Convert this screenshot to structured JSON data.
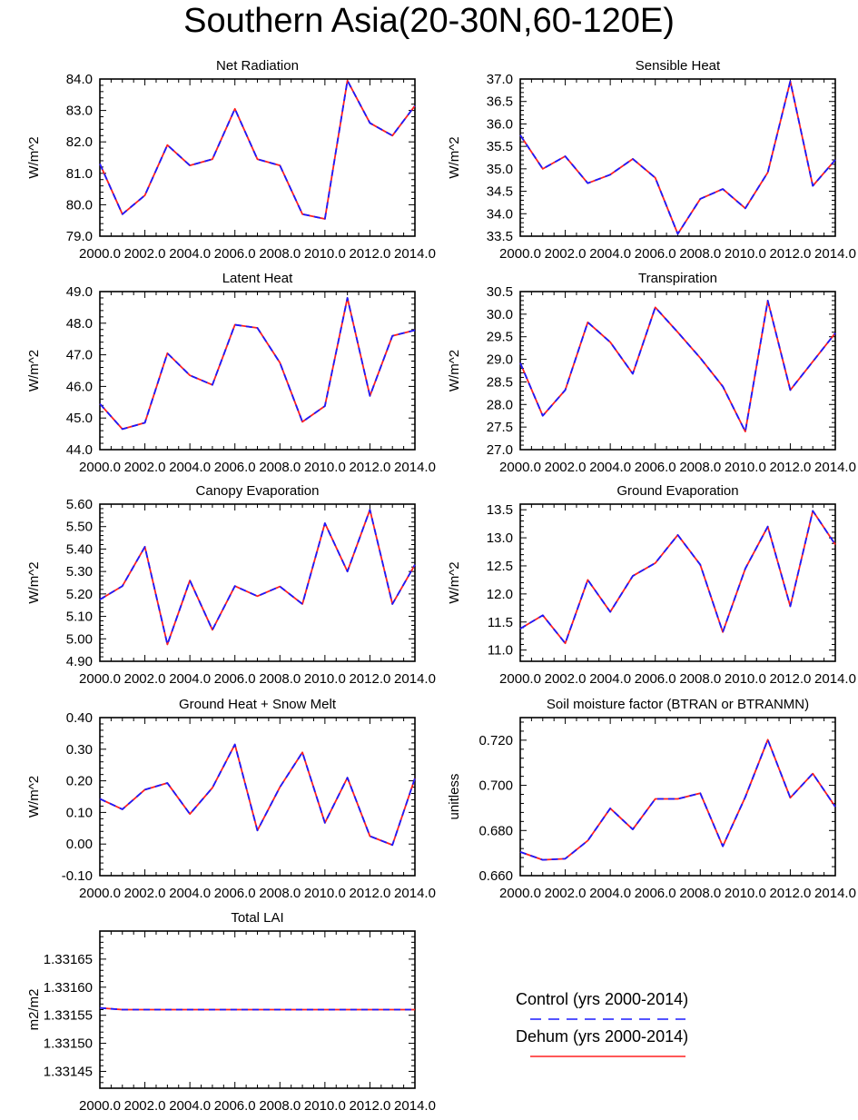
{
  "figure": {
    "title": "Southern Asia(20-30N,60-120E)"
  },
  "colors": {
    "control": "#1a1aff",
    "dehum": "#ff2020",
    "axis": "#000000",
    "background": "#ffffff"
  },
  "legend": {
    "control_label": "Control (yrs 2000-2014)",
    "dehum_label": "Dehum (yrs 2000-2014)"
  },
  "chart_data": [
    {
      "type": "line",
      "title": "Net Radiation",
      "ylabel": "W/m^2",
      "xlabel": "",
      "xlim": [
        2000,
        2014
      ],
      "ylim": [
        79.0,
        84.0
      ],
      "ytick_decimals": 1,
      "xticks": [
        2000,
        2002,
        2004,
        2006,
        2008,
        2010,
        2012,
        2014
      ],
      "xtick_labels": [
        "2000.0",
        "2002.0",
        "2004.0",
        "2006.0",
        "2008.0",
        "2010.0",
        "2012.0",
        "2014.0"
      ],
      "yticks": [
        79.0,
        80.0,
        81.0,
        82.0,
        83.0,
        84.0
      ],
      "yminor": 5,
      "x": [
        2000,
        2001,
        2002,
        2003,
        2004,
        2005,
        2006,
        2007,
        2008,
        2009,
        2010,
        2011,
        2012,
        2013,
        2014
      ],
      "series": [
        {
          "name": "Control (yrs 2000-2014)",
          "style": "dashed",
          "values": [
            81.3,
            79.7,
            80.3,
            81.9,
            81.25,
            81.45,
            83.05,
            81.45,
            81.25,
            79.7,
            79.55,
            83.95,
            82.6,
            82.2,
            83.15
          ]
        },
        {
          "name": "Dehum (yrs 2000-2014)",
          "style": "solid",
          "values": [
            81.3,
            79.7,
            80.3,
            81.9,
            81.25,
            81.45,
            83.05,
            81.45,
            81.25,
            79.7,
            79.55,
            83.95,
            82.6,
            82.2,
            83.15
          ]
        }
      ]
    },
    {
      "type": "line",
      "title": "Sensible Heat",
      "ylabel": "W/m^2",
      "xlabel": "",
      "xlim": [
        2000,
        2014
      ],
      "ylim": [
        33.5,
        37.0
      ],
      "ytick_decimals": 1,
      "xticks": [
        2000,
        2002,
        2004,
        2006,
        2008,
        2010,
        2012,
        2014
      ],
      "xtick_labels": [
        "2000.0",
        "2002.0",
        "2004.0",
        "2006.0",
        "2008.0",
        "2010.0",
        "2012.0",
        "2014.0"
      ],
      "yticks": [
        33.5,
        34.0,
        34.5,
        35.0,
        35.5,
        36.0,
        36.5,
        37.0
      ],
      "yminor": 5,
      "x": [
        2000,
        2001,
        2002,
        2003,
        2004,
        2005,
        2006,
        2007,
        2008,
        2009,
        2010,
        2011,
        2012,
        2013,
        2014
      ],
      "series": [
        {
          "name": "Control (yrs 2000-2014)",
          "style": "dashed",
          "values": [
            35.75,
            35.0,
            35.28,
            34.68,
            34.87,
            35.22,
            34.8,
            33.55,
            34.33,
            34.55,
            34.12,
            34.92,
            36.95,
            34.62,
            35.2
          ]
        },
        {
          "name": "Dehum (yrs 2000-2014)",
          "style": "solid",
          "values": [
            35.75,
            35.0,
            35.28,
            34.68,
            34.87,
            35.22,
            34.8,
            33.55,
            34.33,
            34.55,
            34.12,
            34.92,
            36.95,
            34.62,
            35.2
          ]
        }
      ]
    },
    {
      "type": "line",
      "title": "Latent Heat",
      "ylabel": "W/m^2",
      "xlabel": "",
      "xlim": [
        2000,
        2014
      ],
      "ylim": [
        44.0,
        49.0
      ],
      "ytick_decimals": 1,
      "xticks": [
        2000,
        2002,
        2004,
        2006,
        2008,
        2010,
        2012,
        2014
      ],
      "xtick_labels": [
        "2000.0",
        "2002.0",
        "2004.0",
        "2006.0",
        "2008.0",
        "2010.0",
        "2012.0",
        "2014.0"
      ],
      "yticks": [
        44.0,
        45.0,
        46.0,
        47.0,
        48.0,
        49.0
      ],
      "yminor": 5,
      "x": [
        2000,
        2001,
        2002,
        2003,
        2004,
        2005,
        2006,
        2007,
        2008,
        2009,
        2010,
        2011,
        2012,
        2013,
        2014
      ],
      "series": [
        {
          "name": "Control (yrs 2000-2014)",
          "style": "dashed",
          "values": [
            45.45,
            44.65,
            44.85,
            47.05,
            46.35,
            46.05,
            47.95,
            47.85,
            46.75,
            44.88,
            45.38,
            48.8,
            45.7,
            47.6,
            47.78
          ]
        },
        {
          "name": "Dehum (yrs 2000-2014)",
          "style": "solid",
          "values": [
            45.45,
            44.65,
            44.85,
            47.05,
            46.35,
            46.05,
            47.95,
            47.85,
            46.75,
            44.88,
            45.38,
            48.8,
            45.7,
            47.6,
            47.78
          ]
        }
      ]
    },
    {
      "type": "line",
      "title": "Transpiration",
      "ylabel": "W/m^2",
      "xlabel": "",
      "xlim": [
        2000,
        2014
      ],
      "ylim": [
        27.0,
        30.5
      ],
      "ytick_decimals": 1,
      "xticks": [
        2000,
        2002,
        2004,
        2006,
        2008,
        2010,
        2012,
        2014
      ],
      "xtick_labels": [
        "2000.0",
        "2002.0",
        "2004.0",
        "2006.0",
        "2008.0",
        "2010.0",
        "2012.0",
        "2014.0"
      ],
      "yticks": [
        27.0,
        27.5,
        28.0,
        28.5,
        29.0,
        29.5,
        30.0,
        30.5
      ],
      "yminor": 5,
      "x": [
        2000,
        2001,
        2002,
        2003,
        2004,
        2005,
        2006,
        2007,
        2008,
        2009,
        2010,
        2011,
        2012,
        2013,
        2014
      ],
      "series": [
        {
          "name": "Control (yrs 2000-2014)",
          "style": "dashed",
          "values": [
            28.92,
            27.75,
            28.32,
            29.82,
            29.38,
            28.68,
            30.15,
            29.6,
            29.03,
            28.4,
            27.4,
            30.3,
            28.32,
            28.95,
            29.58
          ]
        },
        {
          "name": "Dehum (yrs 2000-2014)",
          "style": "solid",
          "values": [
            28.92,
            27.75,
            28.32,
            29.82,
            29.38,
            28.68,
            30.15,
            29.6,
            29.03,
            28.4,
            27.4,
            30.3,
            28.32,
            28.95,
            29.58
          ]
        }
      ]
    },
    {
      "type": "line",
      "title": "Canopy Evaporation",
      "ylabel": "W/m^2",
      "xlabel": "",
      "xlim": [
        2000,
        2014
      ],
      "ylim": [
        4.9,
        5.6
      ],
      "ytick_decimals": 2,
      "xticks": [
        2000,
        2002,
        2004,
        2006,
        2008,
        2010,
        2012,
        2014
      ],
      "xtick_labels": [
        "2000.0",
        "2002.0",
        "2004.0",
        "2006.0",
        "2008.0",
        "2010.0",
        "2012.0",
        "2014.0"
      ],
      "yticks": [
        4.9,
        5.0,
        5.1,
        5.2,
        5.3,
        5.4,
        5.5,
        5.6
      ],
      "yminor": 5,
      "x": [
        2000,
        2001,
        2002,
        2003,
        2004,
        2005,
        2006,
        2007,
        2008,
        2009,
        2010,
        2011,
        2012,
        2013,
        2014
      ],
      "series": [
        {
          "name": "Control (yrs 2000-2014)",
          "style": "dashed",
          "values": [
            5.175,
            5.235,
            5.41,
            4.975,
            5.26,
            5.04,
            5.235,
            5.19,
            5.233,
            5.155,
            5.515,
            5.3,
            5.575,
            5.155,
            5.33
          ]
        },
        {
          "name": "Dehum (yrs 2000-2014)",
          "style": "solid",
          "values": [
            5.175,
            5.235,
            5.41,
            4.975,
            5.26,
            5.04,
            5.235,
            5.19,
            5.233,
            5.155,
            5.515,
            5.3,
            5.575,
            5.155,
            5.33
          ]
        }
      ]
    },
    {
      "type": "line",
      "title": "Ground Evaporation",
      "ylabel": "W/m^2",
      "xlabel": "",
      "xlim": [
        2000,
        2014
      ],
      "ylim": [
        10.8,
        13.6
      ],
      "ytick_decimals": 1,
      "xticks": [
        2000,
        2002,
        2004,
        2006,
        2008,
        2010,
        2012,
        2014
      ],
      "xtick_labels": [
        "2000.0",
        "2002.0",
        "2004.0",
        "2006.0",
        "2008.0",
        "2010.0",
        "2012.0",
        "2014.0"
      ],
      "yticks": [
        11.0,
        11.5,
        12.0,
        12.5,
        13.0,
        13.5
      ],
      "yminor": 5,
      "x": [
        2000,
        2001,
        2002,
        2003,
        2004,
        2005,
        2006,
        2007,
        2008,
        2009,
        2010,
        2011,
        2012,
        2013,
        2014
      ],
      "series": [
        {
          "name": "Control (yrs 2000-2014)",
          "style": "dashed",
          "values": [
            11.38,
            11.62,
            11.12,
            12.25,
            11.68,
            12.32,
            12.55,
            13.05,
            12.52,
            11.32,
            12.45,
            13.2,
            11.78,
            13.48,
            12.88
          ]
        },
        {
          "name": "Dehum (yrs 2000-2014)",
          "style": "solid",
          "values": [
            11.38,
            11.62,
            11.12,
            12.25,
            11.68,
            12.32,
            12.55,
            13.05,
            12.52,
            11.32,
            12.45,
            13.2,
            11.78,
            13.48,
            12.88
          ]
        }
      ]
    },
    {
      "type": "line",
      "title": "Ground Heat + Snow Melt",
      "ylabel": "W/m^2",
      "xlabel": "",
      "xlim": [
        2000,
        2014
      ],
      "ylim": [
        -0.1,
        0.4
      ],
      "ytick_decimals": 2,
      "xticks": [
        2000,
        2002,
        2004,
        2006,
        2008,
        2010,
        2012,
        2014
      ],
      "xtick_labels": [
        "2000.0",
        "2002.0",
        "2004.0",
        "2006.0",
        "2008.0",
        "2010.0",
        "2012.0",
        "2014.0"
      ],
      "yticks": [
        -0.1,
        0.0,
        0.1,
        0.2,
        0.3,
        0.4
      ],
      "yminor": 5,
      "x": [
        2000,
        2001,
        2002,
        2003,
        2004,
        2005,
        2006,
        2007,
        2008,
        2009,
        2010,
        2011,
        2012,
        2013,
        2014
      ],
      "series": [
        {
          "name": "Control (yrs 2000-2014)",
          "style": "dashed",
          "values": [
            0.143,
            0.11,
            0.172,
            0.193,
            0.095,
            0.178,
            0.315,
            0.043,
            0.18,
            0.29,
            0.067,
            0.21,
            0.025,
            -0.003,
            0.208
          ]
        },
        {
          "name": "Dehum (yrs 2000-2014)",
          "style": "solid",
          "values": [
            0.143,
            0.11,
            0.172,
            0.193,
            0.095,
            0.178,
            0.315,
            0.043,
            0.18,
            0.29,
            0.067,
            0.21,
            0.025,
            -0.003,
            0.208
          ]
        }
      ]
    },
    {
      "type": "line",
      "title": "Soil moisture factor (BTRAN or BTRANMN)",
      "ylabel": "unitless",
      "xlabel": "",
      "xlim": [
        2000,
        2014
      ],
      "ylim": [
        0.66,
        0.73
      ],
      "ytick_decimals": 3,
      "xticks": [
        2000,
        2002,
        2004,
        2006,
        2008,
        2010,
        2012,
        2014
      ],
      "xtick_labels": [
        "2000.0",
        "2002.0",
        "2004.0",
        "2006.0",
        "2008.0",
        "2010.0",
        "2012.0",
        "2014.0"
      ],
      "yticks": [
        0.66,
        0.68,
        0.7,
        0.72
      ],
      "yminor": 5,
      "x": [
        2000,
        2001,
        2002,
        2003,
        2004,
        2005,
        2006,
        2007,
        2008,
        2009,
        2010,
        2011,
        2012,
        2013,
        2014
      ],
      "series": [
        {
          "name": "Control (yrs 2000-2014)",
          "style": "dashed",
          "values": [
            0.6705,
            0.667,
            0.6675,
            0.6755,
            0.6898,
            0.6805,
            0.694,
            0.694,
            0.6965,
            0.673,
            0.6948,
            0.7202,
            0.6945,
            0.7052,
            0.6905
          ]
        },
        {
          "name": "Dehum (yrs 2000-2014)",
          "style": "solid",
          "values": [
            0.6705,
            0.667,
            0.6675,
            0.6755,
            0.6898,
            0.6805,
            0.694,
            0.694,
            0.6965,
            0.673,
            0.6948,
            0.7202,
            0.6945,
            0.7052,
            0.6905
          ]
        }
      ]
    },
    {
      "type": "line",
      "title": "Total LAI",
      "ylabel": "m2/m2",
      "xlabel": "",
      "xlim": [
        2000,
        2014
      ],
      "ylim": [
        1.33142,
        1.3317
      ],
      "ytick_decimals": 5,
      "xticks": [
        2000,
        2002,
        2004,
        2006,
        2008,
        2010,
        2012,
        2014
      ],
      "xtick_labels": [
        "2000.0",
        "2002.0",
        "2004.0",
        "2006.0",
        "2008.0",
        "2010.0",
        "2012.0",
        "2014.0"
      ],
      "yticks": [
        1.33145,
        1.3315,
        1.33155,
        1.3316,
        1.33165
      ],
      "yminor": 5,
      "x": [
        2000,
        2001,
        2002,
        2003,
        2004,
        2005,
        2006,
        2007,
        2008,
        2009,
        2010,
        2011,
        2012,
        2013,
        2014
      ],
      "series": [
        {
          "name": "Control (yrs 2000-2014)",
          "style": "dashed",
          "values": [
            1.331563,
            1.33156,
            1.33156,
            1.33156,
            1.33156,
            1.33156,
            1.33156,
            1.33156,
            1.33156,
            1.33156,
            1.33156,
            1.33156,
            1.33156,
            1.33156,
            1.33156
          ]
        },
        {
          "name": "Dehum (yrs 2000-2014)",
          "style": "solid",
          "values": [
            1.331563,
            1.33156,
            1.33156,
            1.33156,
            1.33156,
            1.33156,
            1.33156,
            1.33156,
            1.33156,
            1.33156,
            1.33156,
            1.33156,
            1.33156,
            1.33156,
            1.33156
          ]
        }
      ]
    }
  ]
}
